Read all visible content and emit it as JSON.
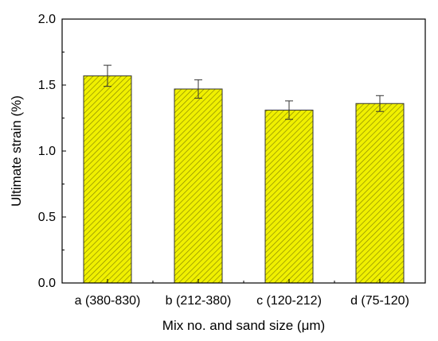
{
  "chart_data": {
    "type": "bar",
    "title": "",
    "xlabel": "Mix no. and sand size (μm)",
    "ylabel": "Ultimate strain (%)",
    "categories": [
      "a (380-830)",
      "b (212-380)",
      "c (120-212)",
      "d (75-120)"
    ],
    "values": [
      1.57,
      1.47,
      1.31,
      1.36
    ],
    "errors": [
      0.08,
      0.07,
      0.07,
      0.06
    ],
    "ylim": [
      0,
      2.0
    ],
    "yticks": [
      "0.0",
      "0.5",
      "1.0",
      "1.5",
      "2.0"
    ],
    "ytick_values": [
      0,
      0.5,
      1.0,
      1.5,
      2.0
    ],
    "grid": false,
    "bar_fill": "#f0f000",
    "bar_hatch": "#8a8a00",
    "bar_edge": "#333333",
    "error_color": "#333333"
  }
}
